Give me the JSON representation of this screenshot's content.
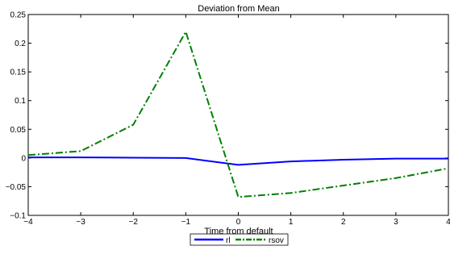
{
  "chart_data": {
    "type": "line",
    "title": "Deviation from Mean",
    "xlabel": "Time from default",
    "ylabel": "",
    "xlim": [
      -4,
      4
    ],
    "ylim": [
      -0.1,
      0.25
    ],
    "x_ticks": [
      "−4",
      "−3",
      "−2",
      "−1",
      "0",
      "1",
      "2",
      "3",
      "4"
    ],
    "y_ticks": [
      "−0.1",
      "−0.05",
      "0",
      "0.05",
      "0.1",
      "0.15",
      "0.2",
      "0.25"
    ],
    "x_tick_values": [
      -4,
      -3,
      -2,
      -1,
      0,
      1,
      2,
      3,
      4
    ],
    "y_tick_values": [
      -0.1,
      -0.05,
      0,
      0.05,
      0.1,
      0.15,
      0.2,
      0.25
    ],
    "grid": false,
    "legend_position": "bottom-center",
    "x": [
      -4,
      -3,
      -2,
      -1,
      0,
      1,
      2,
      3,
      4
    ],
    "series": [
      {
        "name": "rl",
        "color": "#0000ff",
        "dash": "solid",
        "values": [
          0.001,
          0.001,
          0.0005,
          0.0,
          -0.012,
          -0.006,
          -0.003,
          -0.001,
          -0.001
        ]
      },
      {
        "name": "rsov",
        "color": "#008000",
        "dash": "dashdot",
        "values": [
          0.005,
          0.012,
          0.058,
          0.22,
          -0.068,
          -0.061,
          -0.048,
          -0.035,
          -0.018
        ]
      }
    ]
  }
}
